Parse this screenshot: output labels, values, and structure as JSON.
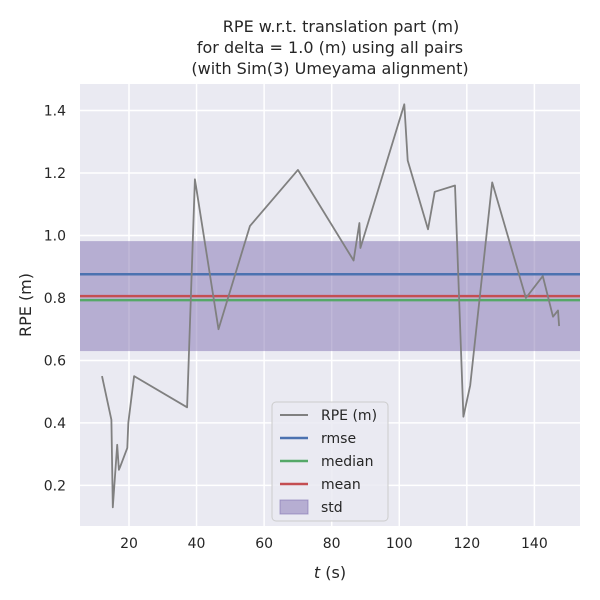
{
  "chart_data": {
    "type": "line",
    "title_lines": [
      "RPE w.r.t. translation part (m)",
      "for delta = 1.0 (m) using all pairs",
      "(with Sim(3) Umeyama alignment)"
    ],
    "xlabel_var": "t",
    "xlabel_unit": " (s)",
    "ylabel": "RPE (m)",
    "xlim": [
      5.5,
      153.5
    ],
    "ylim": [
      0.07,
      1.485
    ],
    "xticks": [
      20,
      40,
      60,
      80,
      100,
      120,
      140
    ],
    "yticks": [
      0.2,
      0.4,
      0.6,
      0.8,
      1.0,
      1.2,
      1.4
    ],
    "xtick_labels": [
      "20",
      "40",
      "60",
      "80",
      "100",
      "120",
      "140"
    ],
    "ytick_labels": [
      "0.2",
      "0.4",
      "0.6",
      "0.8",
      "1.0",
      "1.2",
      "1.4"
    ],
    "grid": true,
    "legend_position": "lower center",
    "series": [
      {
        "name": "RPE (m)",
        "color": "#808080",
        "x": [
          12.0,
          14.8,
          15.2,
          16.5,
          17.0,
          17.4,
          19.5,
          19.8,
          21.5,
          37.2,
          39.5,
          46.5,
          55.8,
          70.0,
          86.5,
          88.2,
          88.5,
          101.5,
          102.5,
          108.5,
          110.5,
          116.5,
          119.0,
          121.0,
          127.5,
          137.5,
          142.5,
          145.5,
          147.0,
          147.3
        ],
        "y": [
          0.55,
          0.41,
          0.13,
          0.33,
          0.25,
          0.26,
          0.32,
          0.4,
          0.55,
          0.45,
          1.18,
          0.7,
          1.03,
          1.21,
          0.92,
          1.04,
          0.96,
          1.42,
          1.24,
          1.02,
          1.14,
          1.16,
          0.42,
          0.52,
          1.17,
          0.8,
          0.87,
          0.74,
          0.76,
          0.71
        ]
      }
    ],
    "stats": [
      {
        "name": "rmse",
        "value": 0.876,
        "color": "#4c72b0"
      },
      {
        "name": "median",
        "value": 0.793,
        "color": "#55a868"
      },
      {
        "name": "mean",
        "value": 0.806,
        "color": "#c44e52"
      }
    ],
    "std_band": {
      "name": "std",
      "lower": 0.63,
      "upper": 0.982,
      "color": "#8172b2"
    }
  }
}
